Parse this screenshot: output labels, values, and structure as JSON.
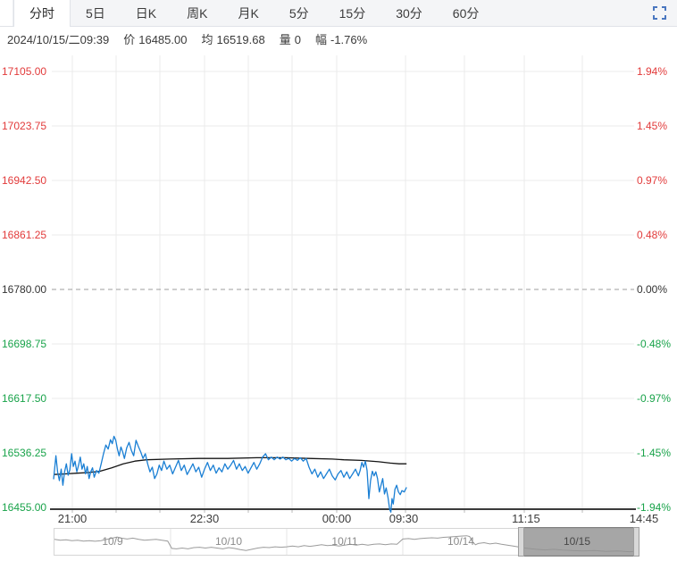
{
  "tabs": {
    "items": [
      {
        "label": "分时",
        "active": true
      },
      {
        "label": "5日",
        "active": false
      },
      {
        "label": "日K",
        "active": false
      },
      {
        "label": "周K",
        "active": false
      },
      {
        "label": "月K",
        "active": false
      },
      {
        "label": "5分",
        "active": false
      },
      {
        "label": "15分",
        "active": false
      },
      {
        "label": "30分",
        "active": false
      },
      {
        "label": "60分",
        "active": false
      }
    ]
  },
  "info": {
    "datetime": "2024/10/15/二09:39",
    "price_label": "价",
    "price_value": "16485.00",
    "avg_label": "均",
    "avg_value": "16519.68",
    "volume_label": "量",
    "volume_value": "0",
    "change_label": "幅",
    "change_value": "-1.76%"
  },
  "colors": {
    "up": "#e23b3b",
    "down": "#19a34a",
    "neutral": "#333333",
    "price_line": "#1a7fd4",
    "avg_line": "#141414",
    "accent_blue": "#4a77c0",
    "grid": "#ebebeb",
    "zero_dash": "#9c9c9c",
    "axis_line": "#3a3a3a",
    "nav_spark": "#9b9b9b"
  },
  "chart_data": {
    "type": "line",
    "title": "",
    "xlabel": "",
    "ylabel": "",
    "ylim": [
      16455,
      17105
    ],
    "prev_close": 16780,
    "grid": true,
    "y_ticks_left": [
      "17105.00",
      "17023.75",
      "16942.50",
      "16861.25",
      "16780.00",
      "16698.75",
      "16617.50",
      "16536.25",
      "16455.00"
    ],
    "y_ticks_right": [
      "1.94%",
      "1.45%",
      "0.97%",
      "0.48%",
      "0.00%",
      "-0.48%",
      "-0.97%",
      "-1.45%",
      "-1.94%"
    ],
    "y_tick_colors": [
      "up",
      "up",
      "up",
      "up",
      "neutral",
      "down",
      "down",
      "down",
      "down"
    ],
    "x_ticks": [
      "21:00",
      "22:30",
      "00:00",
      "09:30",
      "11:15",
      "14:45"
    ],
    "series": [
      {
        "name": "price",
        "color_key": "price_line",
        "points": [
          [
            0.0,
            16497
          ],
          [
            0.004,
            16532
          ],
          [
            0.007,
            16508
          ],
          [
            0.01,
            16495
          ],
          [
            0.013,
            16512
          ],
          [
            0.016,
            16488
          ],
          [
            0.019,
            16508
          ],
          [
            0.022,
            16520
          ],
          [
            0.025,
            16503
          ],
          [
            0.028,
            16511
          ],
          [
            0.031,
            16535
          ],
          [
            0.034,
            16516
          ],
          [
            0.037,
            16524
          ],
          [
            0.04,
            16508
          ],
          [
            0.043,
            16518
          ],
          [
            0.046,
            16530
          ],
          [
            0.049,
            16512
          ],
          [
            0.052,
            16520
          ],
          [
            0.055,
            16505
          ],
          [
            0.058,
            16516
          ],
          [
            0.061,
            16498
          ],
          [
            0.064,
            16508
          ],
          [
            0.067,
            16514
          ],
          [
            0.07,
            16500
          ],
          [
            0.074,
            16510
          ],
          [
            0.078,
            16506
          ],
          [
            0.082,
            16520
          ],
          [
            0.086,
            16535
          ],
          [
            0.09,
            16548
          ],
          [
            0.094,
            16542
          ],
          [
            0.098,
            16556
          ],
          [
            0.101,
            16550
          ],
          [
            0.104,
            16561
          ],
          [
            0.107,
            16555
          ],
          [
            0.11,
            16542
          ],
          [
            0.113,
            16532
          ],
          [
            0.116,
            16545
          ],
          [
            0.119,
            16538
          ],
          [
            0.122,
            16528
          ],
          [
            0.126,
            16544
          ],
          [
            0.13,
            16552
          ],
          [
            0.134,
            16540
          ],
          [
            0.138,
            16532
          ],
          [
            0.142,
            16555
          ],
          [
            0.146,
            16546
          ],
          [
            0.15,
            16538
          ],
          [
            0.154,
            16528
          ],
          [
            0.158,
            16535
          ],
          [
            0.162,
            16520
          ],
          [
            0.166,
            16508
          ],
          [
            0.17,
            16515
          ],
          [
            0.174,
            16498
          ],
          [
            0.178,
            16505
          ],
          [
            0.182,
            16518
          ],
          [
            0.186,
            16510
          ],
          [
            0.19,
            16524
          ],
          [
            0.195,
            16512
          ],
          [
            0.2,
            16518
          ],
          [
            0.205,
            16505
          ],
          [
            0.21,
            16515
          ],
          [
            0.215,
            16525
          ],
          [
            0.22,
            16510
          ],
          [
            0.225,
            16518
          ],
          [
            0.23,
            16504
          ],
          [
            0.235,
            16512
          ],
          [
            0.24,
            16520
          ],
          [
            0.245,
            16508
          ],
          [
            0.25,
            16515
          ],
          [
            0.255,
            16500
          ],
          [
            0.26,
            16512
          ],
          [
            0.265,
            16522
          ],
          [
            0.27,
            16510
          ],
          [
            0.275,
            16518
          ],
          [
            0.28,
            16506
          ],
          [
            0.285,
            16514
          ],
          [
            0.29,
            16508
          ],
          [
            0.295,
            16520
          ],
          [
            0.3,
            16512
          ],
          [
            0.305,
            16518
          ],
          [
            0.31,
            16525
          ],
          [
            0.315,
            16512
          ],
          [
            0.32,
            16520
          ],
          [
            0.325,
            16510
          ],
          [
            0.33,
            16516
          ],
          [
            0.335,
            16506
          ],
          [
            0.34,
            16514
          ],
          [
            0.345,
            16522
          ],
          [
            0.35,
            16512
          ],
          [
            0.355,
            16520
          ],
          [
            0.36,
            16530
          ],
          [
            0.365,
            16535
          ],
          [
            0.37,
            16526
          ],
          [
            0.375,
            16530
          ],
          [
            0.38,
            16526
          ],
          [
            0.385,
            16530
          ],
          [
            0.39,
            16527
          ],
          [
            0.395,
            16530
          ],
          [
            0.4,
            16526
          ],
          [
            0.405,
            16528
          ],
          [
            0.41,
            16524
          ],
          [
            0.415,
            16528
          ],
          [
            0.42,
            16525
          ],
          [
            0.425,
            16529
          ],
          [
            0.43,
            16524
          ],
          [
            0.435,
            16528
          ],
          [
            0.44,
            16515
          ],
          [
            0.445,
            16505
          ],
          [
            0.45,
            16512
          ],
          [
            0.455,
            16500
          ],
          [
            0.46,
            16508
          ],
          [
            0.465,
            16498
          ],
          [
            0.47,
            16505
          ],
          [
            0.475,
            16512
          ],
          [
            0.48,
            16502
          ],
          [
            0.485,
            16496
          ],
          [
            0.49,
            16505
          ],
          [
            0.495,
            16510
          ],
          [
            0.5,
            16500
          ],
          [
            0.505,
            16508
          ],
          [
            0.51,
            16498
          ],
          [
            0.515,
            16505
          ],
          [
            0.52,
            16512
          ],
          [
            0.525,
            16502
          ],
          [
            0.528,
            16510
          ],
          [
            0.531,
            16522
          ],
          [
            0.534,
            16515
          ],
          [
            0.537,
            16524
          ],
          [
            0.54,
            16510
          ],
          [
            0.543,
            16468
          ],
          [
            0.546,
            16495
          ],
          [
            0.549,
            16509
          ],
          [
            0.552,
            16502
          ],
          [
            0.555,
            16508
          ],
          [
            0.558,
            16498
          ],
          [
            0.561,
            16478
          ],
          [
            0.564,
            16488
          ],
          [
            0.567,
            16498
          ],
          [
            0.57,
            16475
          ],
          [
            0.573,
            16484
          ],
          [
            0.576,
            16470
          ],
          [
            0.579,
            16452
          ],
          [
            0.581,
            16448
          ],
          [
            0.583,
            16468
          ],
          [
            0.585,
            16460
          ],
          [
            0.588,
            16482
          ],
          [
            0.591,
            16488
          ],
          [
            0.594,
            16478
          ],
          [
            0.597,
            16474
          ],
          [
            0.6,
            16480
          ],
          [
            0.604,
            16478
          ],
          [
            0.608,
            16485
          ]
        ]
      },
      {
        "name": "average",
        "color_key": "avg_line",
        "points": [
          [
            0.0,
            16504
          ],
          [
            0.02,
            16505
          ],
          [
            0.04,
            16506
          ],
          [
            0.06,
            16507
          ],
          [
            0.08,
            16509
          ],
          [
            0.1,
            16514
          ],
          [
            0.12,
            16520
          ],
          [
            0.14,
            16524
          ],
          [
            0.16,
            16526
          ],
          [
            0.2,
            16527
          ],
          [
            0.25,
            16528
          ],
          [
            0.3,
            16528
          ],
          [
            0.35,
            16529
          ],
          [
            0.4,
            16529
          ],
          [
            0.44,
            16528
          ],
          [
            0.48,
            16527
          ],
          [
            0.5,
            16526
          ],
          [
            0.53,
            16525
          ],
          [
            0.56,
            16523
          ],
          [
            0.58,
            16521
          ],
          [
            0.595,
            16520
          ],
          [
            0.608,
            16520
          ]
        ]
      }
    ],
    "navigator": {
      "dates": [
        "10/9",
        "10/10",
        "10/11",
        "10/14",
        "10/15"
      ],
      "selected": "10/15",
      "spark": [
        [
          0.0,
          0.66
        ],
        [
          0.01,
          0.62
        ],
        [
          0.02,
          0.64
        ],
        [
          0.03,
          0.6
        ],
        [
          0.04,
          0.62
        ],
        [
          0.05,
          0.58
        ],
        [
          0.06,
          0.6
        ],
        [
          0.07,
          0.57
        ],
        [
          0.08,
          0.6
        ],
        [
          0.09,
          0.66
        ],
        [
          0.1,
          0.72
        ],
        [
          0.108,
          0.78
        ],
        [
          0.115,
          0.72
        ],
        [
          0.125,
          0.68
        ],
        [
          0.135,
          0.72
        ],
        [
          0.145,
          0.66
        ],
        [
          0.155,
          0.62
        ],
        [
          0.165,
          0.64
        ],
        [
          0.175,
          0.66
        ],
        [
          0.185,
          0.62
        ],
        [
          0.195,
          0.58
        ],
        [
          0.202,
          0.22
        ],
        [
          0.21,
          0.2
        ],
        [
          0.22,
          0.24
        ],
        [
          0.23,
          0.2
        ],
        [
          0.24,
          0.26
        ],
        [
          0.25,
          0.28
        ],
        [
          0.26,
          0.24
        ],
        [
          0.27,
          0.28
        ],
        [
          0.28,
          0.24
        ],
        [
          0.29,
          0.2
        ],
        [
          0.3,
          0.26
        ],
        [
          0.31,
          0.22
        ],
        [
          0.32,
          0.16
        ],
        [
          0.33,
          0.12
        ],
        [
          0.34,
          0.18
        ],
        [
          0.35,
          0.24
        ],
        [
          0.36,
          0.28
        ],
        [
          0.37,
          0.26
        ],
        [
          0.38,
          0.3
        ],
        [
          0.39,
          0.28
        ],
        [
          0.4,
          0.3
        ],
        [
          0.41,
          0.34
        ],
        [
          0.42,
          0.3
        ],
        [
          0.43,
          0.36
        ],
        [
          0.44,
          0.32
        ],
        [
          0.45,
          0.36
        ],
        [
          0.46,
          0.4
        ],
        [
          0.47,
          0.36
        ],
        [
          0.48,
          0.38
        ],
        [
          0.49,
          0.34
        ],
        [
          0.5,
          0.38
        ],
        [
          0.51,
          0.42
        ],
        [
          0.52,
          0.38
        ],
        [
          0.53,
          0.42
        ],
        [
          0.54,
          0.38
        ],
        [
          0.55,
          0.42
        ],
        [
          0.56,
          0.44
        ],
        [
          0.57,
          0.4
        ],
        [
          0.58,
          0.44
        ],
        [
          0.59,
          0.42
        ],
        [
          0.6,
          0.68
        ],
        [
          0.61,
          0.7
        ],
        [
          0.62,
          0.66
        ],
        [
          0.63,
          0.7
        ],
        [
          0.64,
          0.72
        ],
        [
          0.65,
          0.74
        ],
        [
          0.66,
          0.72
        ],
        [
          0.67,
          0.76
        ],
        [
          0.68,
          0.78
        ],
        [
          0.69,
          0.8
        ],
        [
          0.7,
          0.82
        ],
        [
          0.71,
          0.84
        ],
        [
          0.715,
          0.8
        ],
        [
          0.72,
          0.55
        ],
        [
          0.725,
          0.4
        ],
        [
          0.73,
          0.46
        ],
        [
          0.74,
          0.5
        ],
        [
          0.75,
          0.44
        ],
        [
          0.76,
          0.48
        ],
        [
          0.77,
          0.42
        ],
        [
          0.78,
          0.38
        ],
        [
          0.79,
          0.34
        ],
        [
          0.798,
          0.3
        ],
        [
          0.805,
          0.26
        ],
        [
          0.815,
          0.22
        ],
        [
          0.83,
          0.18
        ],
        [
          0.845,
          0.15
        ],
        [
          0.86,
          0.18
        ],
        [
          0.875,
          0.14
        ],
        [
          0.89,
          0.12
        ],
        [
          0.91,
          0.1
        ],
        [
          0.93,
          0.12
        ],
        [
          0.95,
          0.08
        ],
        [
          0.97,
          0.1
        ],
        [
          0.99,
          0.06
        ],
        [
          1.0,
          0.08
        ]
      ]
    }
  }
}
